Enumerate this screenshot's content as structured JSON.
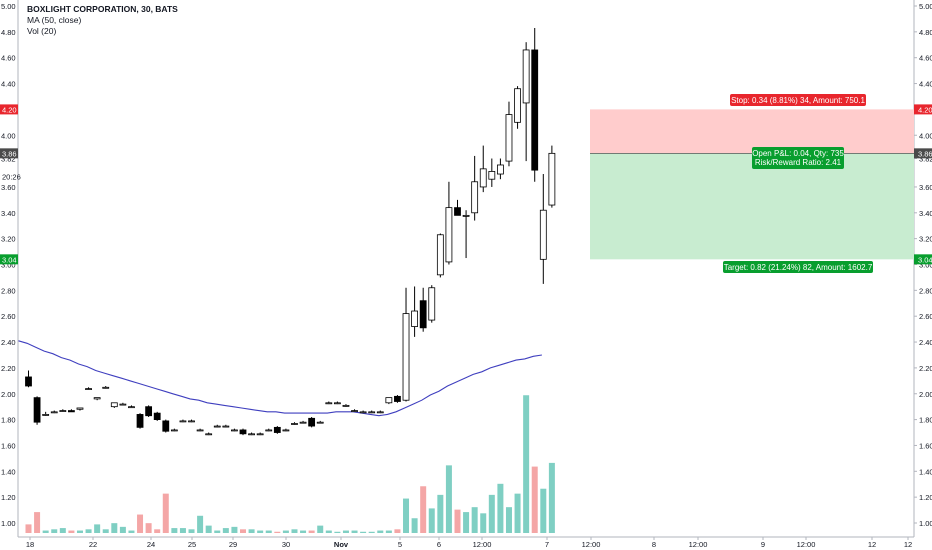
{
  "legend": {
    "title": "BOXLIGHT CORPORATION, 30, BATS",
    "ma": "MA (50, close)",
    "vol": "Vol (20)"
  },
  "colors": {
    "up_candle": "#ffffff",
    "down_candle": "#000000",
    "ma_line": "#3f3fbf",
    "vol_up": "#7fcfc3",
    "vol_down": "#f4a6a6",
    "stop_zone": "#ffcccc",
    "target_zone": "#c8ecd0",
    "stop_pill": "#e8262d",
    "target_pill": "#089e2e"
  },
  "price_axis": {
    "ticks": [
      "5.00",
      "4.80",
      "4.60",
      "4.40",
      "4.20",
      "4.00",
      "3.82",
      "3.60",
      "3.40",
      "3.20",
      "3.00",
      "2.80",
      "2.60",
      "2.40",
      "2.20",
      "2.00",
      "1.80",
      "1.60",
      "1.40",
      "1.20",
      "1.00"
    ],
    "tags": {
      "stop": "4.20",
      "current": "3.86",
      "countdown": "20:26",
      "target": "3.04"
    }
  },
  "time_axis": {
    "labels": [
      "18",
      "22",
      "24",
      "25",
      "29",
      "30",
      "Nov",
      "5",
      "6",
      "12:00",
      "7",
      "12:00",
      "8",
      "12:00",
      "9",
      "12:00",
      "12",
      "12"
    ]
  },
  "position": {
    "stop_label": "Stop: 0.34 (8.81%) 34, Amount: 750.1",
    "pnl_label": "Open P&L: 0.04, Qty: 735",
    "rr_label": "Risk/Reward Ratio: 2.41",
    "target_label": "Target: 0.82 (21.24%) 82, Amount: 1602.7",
    "entry": 3.86,
    "stop": 4.2,
    "target": 3.04
  },
  "chart_data": {
    "type": "candlestick",
    "symbol": "BOXLIGHT CORPORATION",
    "interval": "30",
    "exchange": "BATS",
    "ylim": [
      0.95,
      5.0
    ],
    "candles": [
      {
        "o": 2.13,
        "h": 2.18,
        "l": 2.05,
        "c": 2.06
      },
      {
        "o": 1.97,
        "h": 1.98,
        "l": 1.76,
        "c": 1.78
      },
      {
        "o": 1.84,
        "h": 1.86,
        "l": 1.83,
        "c": 1.84
      },
      {
        "o": 1.86,
        "h": 1.87,
        "l": 1.85,
        "c": 1.86
      },
      {
        "o": 1.87,
        "h": 1.88,
        "l": 1.86,
        "c": 1.87
      },
      {
        "o": 1.87,
        "h": 1.88,
        "l": 1.86,
        "c": 1.86
      },
      {
        "o": 1.88,
        "h": 1.89,
        "l": 1.87,
        "c": 1.89
      },
      {
        "o": 2.04,
        "h": 2.05,
        "l": 2.03,
        "c": 2.04
      },
      {
        "o": 1.96,
        "h": 1.97,
        "l": 1.95,
        "c": 1.97
      },
      {
        "o": 2.05,
        "h": 2.06,
        "l": 2.04,
        "c": 2.05
      },
      {
        "o": 1.9,
        "h": 1.93,
        "l": 1.89,
        "c": 1.93
      },
      {
        "o": 1.92,
        "h": 1.93,
        "l": 1.91,
        "c": 1.92
      },
      {
        "o": 1.9,
        "h": 1.91,
        "l": 1.89,
        "c": 1.9
      },
      {
        "o": 1.84,
        "h": 1.85,
        "l": 1.73,
        "c": 1.74
      },
      {
        "o": 1.9,
        "h": 1.91,
        "l": 1.82,
        "c": 1.83
      },
      {
        "o": 1.85,
        "h": 1.86,
        "l": 1.79,
        "c": 1.8
      },
      {
        "o": 1.79,
        "h": 1.8,
        "l": 1.7,
        "c": 1.71
      },
      {
        "o": 1.72,
        "h": 1.73,
        "l": 1.71,
        "c": 1.72
      },
      {
        "o": 1.79,
        "h": 1.8,
        "l": 1.78,
        "c": 1.79
      },
      {
        "o": 1.79,
        "h": 1.8,
        "l": 1.78,
        "c": 1.79
      },
      {
        "o": 1.72,
        "h": 1.73,
        "l": 1.71,
        "c": 1.72
      },
      {
        "o": 1.69,
        "h": 1.7,
        "l": 1.68,
        "c": 1.69
      },
      {
        "o": 1.75,
        "h": 1.76,
        "l": 1.74,
        "c": 1.75
      },
      {
        "o": 1.75,
        "h": 1.76,
        "l": 1.74,
        "c": 1.75
      },
      {
        "o": 1.72,
        "h": 1.73,
        "l": 1.71,
        "c": 1.72
      },
      {
        "o": 1.72,
        "h": 1.73,
        "l": 1.68,
        "c": 1.69
      },
      {
        "o": 1.69,
        "h": 1.7,
        "l": 1.68,
        "c": 1.69
      },
      {
        "o": 1.69,
        "h": 1.7,
        "l": 1.68,
        "c": 1.69
      },
      {
        "o": 1.72,
        "h": 1.73,
        "l": 1.71,
        "c": 1.72
      },
      {
        "o": 1.74,
        "h": 1.75,
        "l": 1.69,
        "c": 1.7
      },
      {
        "o": 1.72,
        "h": 1.73,
        "l": 1.71,
        "c": 1.72
      },
      {
        "o": 1.77,
        "h": 1.78,
        "l": 1.76,
        "c": 1.77
      },
      {
        "o": 1.78,
        "h": 1.79,
        "l": 1.77,
        "c": 1.78
      },
      {
        "o": 1.81,
        "h": 1.82,
        "l": 1.74,
        "c": 1.75
      },
      {
        "o": 1.78,
        "h": 1.79,
        "l": 1.77,
        "c": 1.78
      },
      {
        "o": 1.93,
        "h": 1.94,
        "l": 1.92,
        "c": 1.93
      },
      {
        "o": 1.93,
        "h": 1.94,
        "l": 1.92,
        "c": 1.93
      },
      {
        "o": 1.91,
        "h": 1.92,
        "l": 1.9,
        "c": 1.91
      },
      {
        "o": 1.87,
        "h": 1.88,
        "l": 1.86,
        "c": 1.87
      },
      {
        "o": 1.86,
        "h": 1.87,
        "l": 1.85,
        "c": 1.86
      },
      {
        "o": 1.86,
        "h": 1.87,
        "l": 1.85,
        "c": 1.86
      },
      {
        "o": 1.86,
        "h": 1.87,
        "l": 1.85,
        "c": 1.86
      },
      {
        "o": 1.93,
        "h": 1.97,
        "l": 1.92,
        "c": 1.97
      },
      {
        "o": 1.98,
        "h": 1.99,
        "l": 1.93,
        "c": 1.94
      },
      {
        "o": 1.95,
        "h": 2.82,
        "l": 1.94,
        "c": 2.62
      },
      {
        "o": 2.52,
        "h": 2.83,
        "l": 2.44,
        "c": 2.64
      },
      {
        "o": 2.72,
        "h": 2.82,
        "l": 2.48,
        "c": 2.51
      },
      {
        "o": 2.57,
        "h": 2.84,
        "l": 2.55,
        "c": 2.82
      },
      {
        "o": 2.92,
        "h": 3.24,
        "l": 2.9,
        "c": 3.23
      },
      {
        "o": 3.02,
        "h": 3.64,
        "l": 3.0,
        "c": 3.44
      },
      {
        "o": 3.44,
        "h": 3.5,
        "l": 3.38,
        "c": 3.38
      },
      {
        "o": 3.38,
        "h": 3.42,
        "l": 3.05,
        "c": 3.38
      },
      {
        "o": 3.4,
        "h": 3.84,
        "l": 3.34,
        "c": 3.64
      },
      {
        "o": 3.6,
        "h": 3.92,
        "l": 3.56,
        "c": 3.74
      },
      {
        "o": 3.66,
        "h": 3.82,
        "l": 3.6,
        "c": 3.72
      },
      {
        "o": 3.7,
        "h": 3.82,
        "l": 3.66,
        "c": 3.77
      },
      {
        "o": 3.8,
        "h": 4.26,
        "l": 3.76,
        "c": 4.16
      },
      {
        "o": 4.1,
        "h": 4.38,
        "l": 4.05,
        "c": 4.36
      },
      {
        "o": 4.25,
        "h": 4.72,
        "l": 3.8,
        "c": 4.66
      },
      {
        "o": 4.66,
        "h": 4.83,
        "l": 3.64,
        "c": 3.73
      },
      {
        "o": 3.04,
        "h": 3.7,
        "l": 2.85,
        "c": 3.42
      },
      {
        "o": 3.46,
        "h": 3.92,
        "l": 3.44,
        "c": 3.86
      }
    ],
    "ma_50": [
      2.41,
      2.39,
      2.36,
      2.33,
      2.31,
      2.28,
      2.26,
      2.23,
      2.21,
      2.18,
      2.16,
      2.14,
      2.12,
      2.1,
      2.08,
      2.06,
      2.04,
      2.02,
      2.0,
      1.98,
      1.96,
      1.95,
      1.93,
      1.92,
      1.91,
      1.9,
      1.89,
      1.88,
      1.87,
      1.86,
      1.86,
      1.85,
      1.85,
      1.85,
      1.85,
      1.85,
      1.85,
      1.86,
      1.86,
      1.86,
      1.85,
      1.84,
      1.83,
      1.84,
      1.86,
      1.89,
      1.92,
      1.95,
      1.99,
      2.02,
      2.06,
      2.09,
      2.12,
      2.15,
      2.17,
      2.2,
      2.22,
      2.24,
      2.26,
      2.27,
      2.29,
      2.3
    ],
    "volume": [
      0.07,
      0.17,
      0.02,
      0.03,
      0.04,
      0.02,
      0.02,
      0.03,
      0.07,
      0.03,
      0.08,
      0.05,
      0.02,
      0.15,
      0.08,
      0.03,
      0.32,
      0.04,
      0.04,
      0.03,
      0.14,
      0.06,
      0.02,
      0.04,
      0.05,
      0.03,
      0.03,
      0.02,
      0.02,
      0.01,
      0.02,
      0.03,
      0.02,
      0.02,
      0.06,
      0.02,
      0.01,
      0.02,
      0.02,
      0.01,
      0.01,
      0.02,
      0.02,
      0.03,
      0.28,
      0.12,
      0.38,
      0.2,
      0.31,
      0.55,
      0.19,
      0.17,
      0.21,
      0.16,
      0.31,
      0.4,
      0.21,
      0.32,
      1.12,
      0.54,
      0.36,
      0.57
    ],
    "time_labels": [
      "18",
      "22",
      "24",
      "25",
      "29",
      "30",
      "Nov",
      "5",
      "6",
      "12:00",
      "7",
      "12:00",
      "8",
      "12:00",
      "9",
      "12:00",
      "12",
      "12"
    ]
  }
}
